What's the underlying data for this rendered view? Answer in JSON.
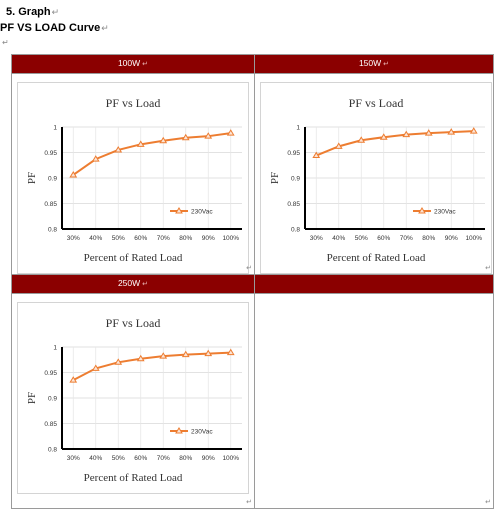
{
  "section": {
    "title": "5. Graph",
    "subtitle": "PF VS LOAD Curve"
  },
  "panels": [
    {
      "header": "100W"
    },
    {
      "header": "150W"
    },
    {
      "header": "250W"
    },
    {
      "header": ""
    }
  ],
  "colors": {
    "header_bg": "#8b0000",
    "series": "#ed7d31"
  },
  "chart_data": [
    {
      "type": "line",
      "title": "PF vs Load",
      "xlabel": "Percent of Rated Load",
      "ylabel": "PF",
      "categories": [
        "30%",
        "40%",
        "50%",
        "60%",
        "70%",
        "80%",
        "90%",
        "100%"
      ],
      "ylim": [
        0.8,
        1.0
      ],
      "yticks": [
        "0.8",
        "0.85",
        "0.9",
        "0.95",
        "1"
      ],
      "grid": true,
      "legend": "bottom-right",
      "series": [
        {
          "name": "230Vac",
          "values": [
            0.906,
            0.937,
            0.955,
            0.966,
            0.973,
            0.979,
            0.982,
            0.988
          ]
        }
      ]
    },
    {
      "type": "line",
      "title": "PF vs Load",
      "xlabel": "Percent of Rated Load",
      "ylabel": "PF",
      "categories": [
        "30%",
        "40%",
        "50%",
        "60%",
        "70%",
        "80%",
        "90%",
        "100%"
      ],
      "ylim": [
        0.8,
        1.0
      ],
      "yticks": [
        "0.8",
        "0.85",
        "0.9",
        "0.95",
        "1"
      ],
      "grid": true,
      "legend": "bottom-right",
      "series": [
        {
          "name": "230Vac",
          "values": [
            0.944,
            0.962,
            0.974,
            0.98,
            0.985,
            0.988,
            0.99,
            0.992
          ]
        }
      ]
    },
    {
      "type": "line",
      "title": "PF vs Load",
      "xlabel": "Percent of Rated Load",
      "ylabel": "PF",
      "categories": [
        "30%",
        "40%",
        "50%",
        "60%",
        "70%",
        "80%",
        "90%",
        "100%"
      ],
      "ylim": [
        0.8,
        1.0
      ],
      "yticks": [
        "0.8",
        "0.85",
        "0.9",
        "0.95",
        "1"
      ],
      "grid": true,
      "legend": "bottom-right",
      "series": [
        {
          "name": "230Vac",
          "values": [
            0.935,
            0.958,
            0.97,
            0.977,
            0.982,
            0.985,
            0.987,
            0.989
          ]
        }
      ]
    }
  ]
}
